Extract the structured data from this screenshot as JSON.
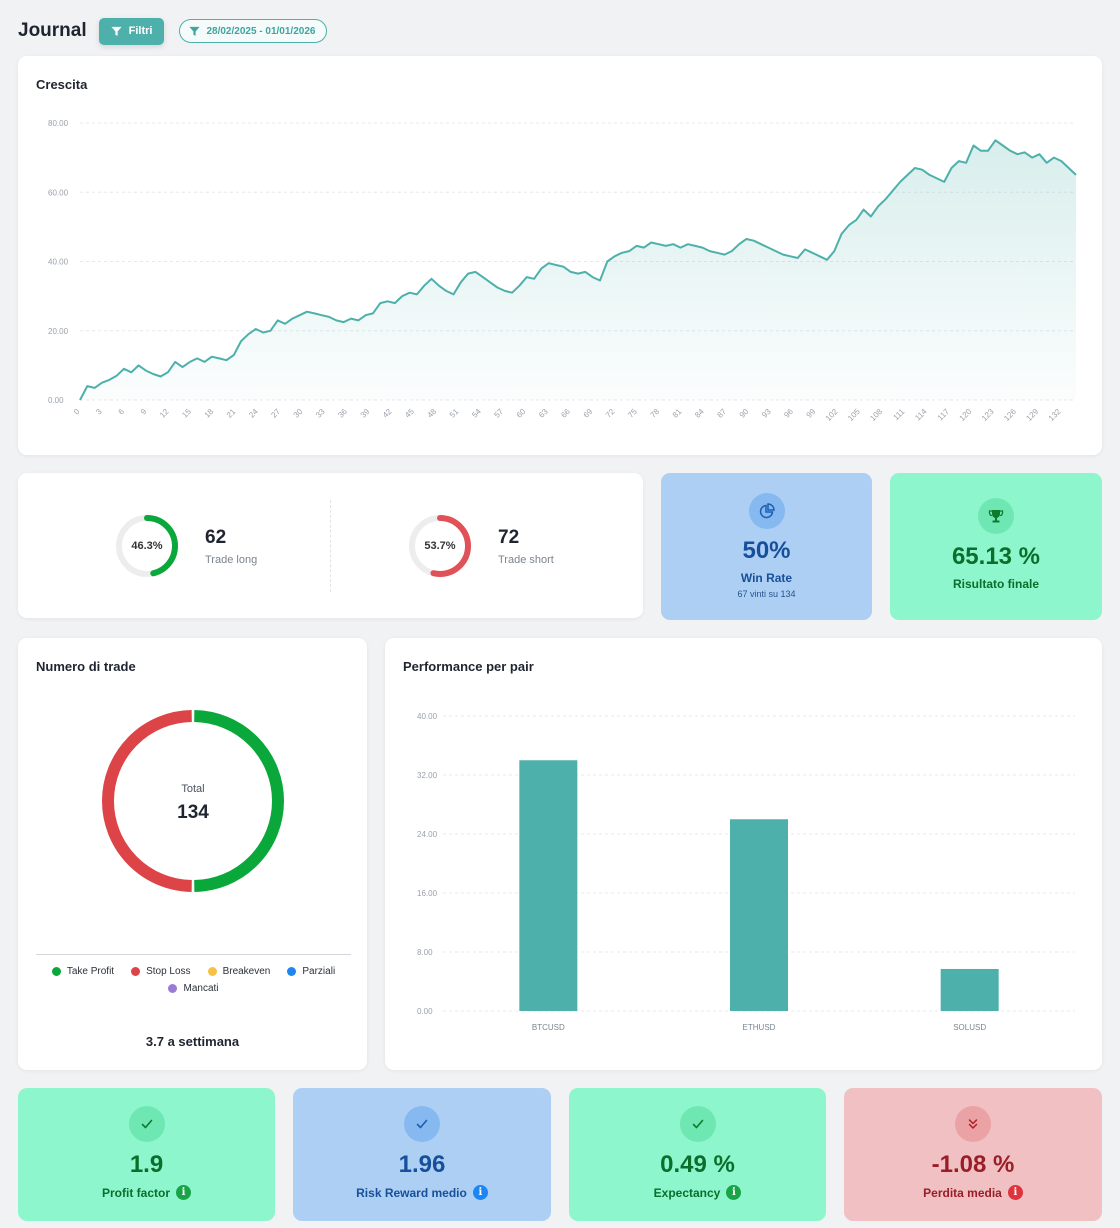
{
  "header": {
    "title": "Journal",
    "filter_label": "Filtri",
    "date_range": "28/02/2025 - 01/01/2026"
  },
  "growth": {
    "title": "Crescita",
    "color": "#4db0aa"
  },
  "long_short": {
    "long": {
      "percent_label": "46.3%",
      "percent": 46.3,
      "count": "62",
      "label": "Trade long",
      "color": "#0aa83a"
    },
    "short": {
      "percent_label": "53.7%",
      "percent": 53.7,
      "count": "72",
      "label": "Trade short",
      "color": "#e05257"
    }
  },
  "win_rate": {
    "value": "50%",
    "label": "Win Rate",
    "sub": "67 vinti su 134",
    "icon": "pie-chart-icon"
  },
  "final_result": {
    "value": "65.13 %",
    "label": "Risultato finale",
    "icon": "trophy-icon"
  },
  "trade_count": {
    "title": "Numero di trade",
    "total_label": "Total",
    "total": "134",
    "weekly": "3.7 a settimana",
    "legend": [
      {
        "label": "Take Profit",
        "color": "#0aa83a"
      },
      {
        "label": "Stop Loss",
        "color": "#dc4447"
      },
      {
        "label": "Breakeven",
        "color": "#f5c242"
      },
      {
        "label": "Parziali",
        "color": "#1e86f0"
      },
      {
        "label": "Mancati",
        "color": "#9b7bd8"
      }
    ]
  },
  "pair_performance": {
    "title": "Performance per pair",
    "color": "#4db0aa"
  },
  "metrics": {
    "profit_factor": {
      "value": "1.9",
      "label": "Profit factor",
      "icon": "check-icon"
    },
    "risk_reward": {
      "value": "1.96",
      "label": "Risk Reward medio",
      "icon": "check-icon"
    },
    "expectancy": {
      "value": "0.49 %",
      "label": "Expectancy",
      "icon": "check-icon"
    },
    "avg_loss": {
      "value": "-1.08 %",
      "label": "Perdita media",
      "icon": "double-chevron-down-icon"
    }
  },
  "chart_data": [
    {
      "type": "area",
      "title": "Crescita",
      "ylim": [
        0,
        80
      ],
      "yticks": [
        "0.00",
        "20.00",
        "40.00",
        "60.00",
        "80.00"
      ],
      "xticks": [
        "0",
        "3",
        "6",
        "9",
        "12",
        "15",
        "18",
        "21",
        "24",
        "27",
        "30",
        "33",
        "36",
        "39",
        "42",
        "45",
        "48",
        "51",
        "54",
        "57",
        "60",
        "63",
        "66",
        "69",
        "72",
        "75",
        "78",
        "81",
        "84",
        "87",
        "90",
        "93",
        "96",
        "99",
        "102",
        "105",
        "108",
        "111",
        "114",
        "117",
        "120",
        "123",
        "126",
        "129",
        "132"
      ],
      "grid": true,
      "x_range": [
        0,
        134
      ],
      "values": [
        0,
        4,
        3.5,
        5,
        5.8,
        7,
        9,
        8,
        10,
        8.5,
        7.5,
        6.8,
        8,
        11,
        9.5,
        11,
        12,
        11,
        12.5,
        12,
        11.5,
        13,
        17,
        19,
        20.5,
        19.5,
        20,
        23,
        22,
        23.5,
        24.5,
        25.5,
        25,
        24.5,
        24,
        23,
        22.5,
        23.5,
        23,
        24.5,
        25,
        28,
        28.5,
        28,
        30,
        31,
        30.5,
        33,
        35,
        33,
        31.5,
        30.5,
        34,
        36.5,
        37,
        35.5,
        34,
        32.5,
        31.5,
        31,
        33,
        35.5,
        35,
        38,
        39.5,
        39,
        38.5,
        37,
        36.5,
        37,
        35.5,
        34.5,
        40,
        41.5,
        42.5,
        43,
        44.5,
        44,
        45.5,
        45,
        44.5,
        45,
        44,
        45,
        44.5,
        44,
        43,
        42.5,
        42,
        43,
        45,
        46.5,
        46,
        45,
        44,
        43,
        42,
        41.5,
        41,
        43.5,
        42.5,
        41.5,
        40.5,
        43,
        48,
        50.5,
        52,
        55,
        53,
        56,
        58,
        60.5,
        63,
        65,
        67,
        66.5,
        65,
        64,
        63,
        67,
        69,
        68.5,
        73.5,
        72,
        72,
        75,
        73.5,
        72,
        71,
        71.5,
        70,
        71,
        68.5,
        70,
        69,
        67,
        65
      ]
    },
    {
      "type": "bar",
      "title": "Performance per pair",
      "categories": [
        "BTCUSD",
        "ETHUSD",
        "SOLUSD"
      ],
      "values": [
        34,
        26,
        5.7
      ],
      "ylim": [
        0,
        40
      ],
      "yticks": [
        "0.00",
        "8.00",
        "16.00",
        "24.00",
        "32.00",
        "40.00"
      ],
      "grid": true
    },
    {
      "type": "pie",
      "title": "Numero di trade",
      "categories": [
        "Take Profit",
        "Stop Loss",
        "Breakeven",
        "Parziali",
        "Mancati"
      ],
      "values": [
        67,
        67,
        0,
        0,
        0
      ]
    }
  ]
}
